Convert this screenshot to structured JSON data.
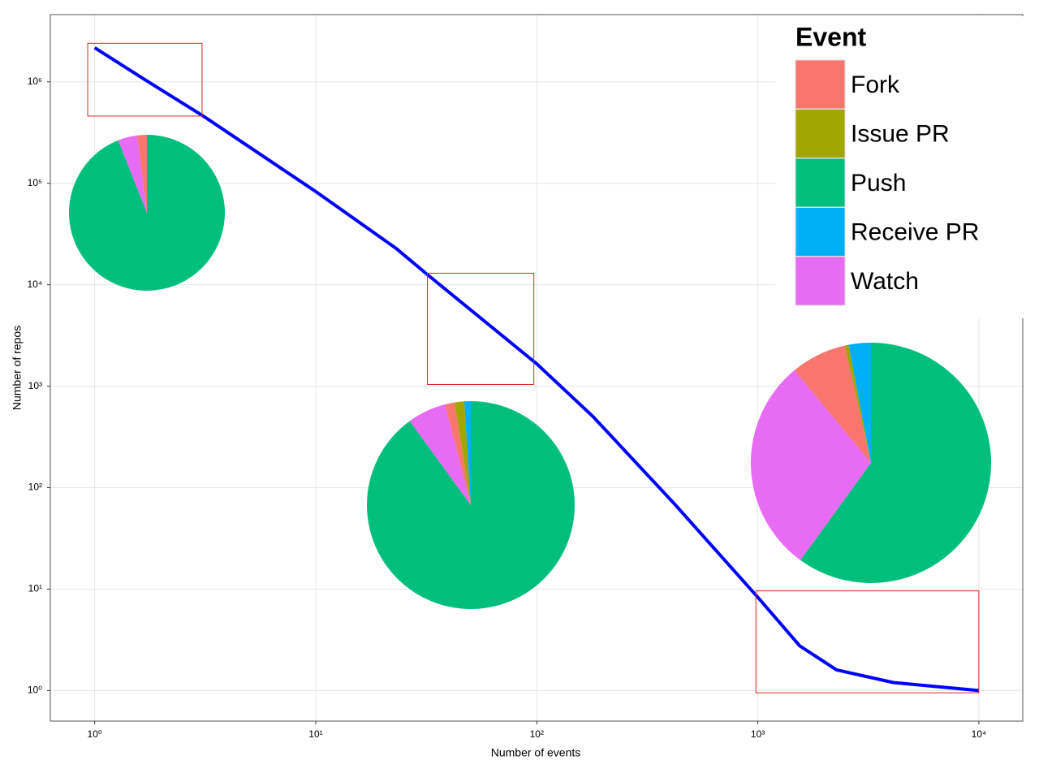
{
  "chart_data": {
    "type": "line",
    "xlabel": "Number of events",
    "ylabel": "Number of repos",
    "xscale": "log",
    "yscale": "log",
    "grid": true,
    "xlim": [
      0.63,
      15800
    ],
    "ylim": [
      0.5,
      4600000
    ],
    "xticks": [
      {
        "value": 1,
        "label": "10⁰"
      },
      {
        "value": 10,
        "label": "10¹"
      },
      {
        "value": 100,
        "label": "10²"
      },
      {
        "value": 1000,
        "label": "10³"
      },
      {
        "value": 10000,
        "label": "10⁴"
      }
    ],
    "yticks": [
      {
        "value": 1,
        "label": "10⁰"
      },
      {
        "value": 10,
        "label": "10¹"
      },
      {
        "value": 100,
        "label": "10²"
      },
      {
        "value": 1000,
        "label": "10³"
      },
      {
        "value": 10000,
        "label": "10⁴"
      },
      {
        "value": 100000,
        "label": "10⁵"
      },
      {
        "value": 1000000,
        "label": "10⁶"
      }
    ],
    "series": [
      {
        "color": "#0000ff",
        "x": [
          1,
          1.7,
          3.1,
          10,
          23,
          32,
          100,
          180,
          420,
          1000,
          1550,
          2270,
          4100,
          10000
        ],
        "values": [
          2170000,
          1040000,
          460000,
          83000,
          23000,
          12600,
          1660,
          500,
          69,
          8.3,
          2.75,
          1.6,
          1.2,
          1
        ]
      }
    ],
    "highlights": [
      {
        "color": "#d62728",
        "xlim": [
          0.93,
          3.06
        ],
        "ylim": [
          460000,
          2400000
        ]
      },
      {
        "color": "#d62728",
        "xlim": [
          32,
          97
        ],
        "ylim": [
          1040,
          13000
        ]
      },
      {
        "color": "#d62728",
        "xlim": [
          980,
          10000
        ],
        "ylim": [
          0.95,
          9.6
        ]
      }
    ],
    "legend": {
      "title": "Event",
      "position": "top-right",
      "categories": [
        "Fork",
        "Issue PR",
        "Push",
        "Receive PR",
        "Watch"
      ],
      "colors": [
        "#F8766D",
        "#A3A500",
        "#00BF7D",
        "#00B0F6",
        "#E76BF3"
      ]
    },
    "pies": [
      {
        "values": [
          2,
          0,
          94,
          0,
          4
        ]
      },
      {
        "values": [
          1.5,
          1.5,
          90,
          1,
          6
        ]
      },
      {
        "values": [
          7.5,
          0.5,
          60,
          3,
          29
        ]
      }
    ]
  }
}
